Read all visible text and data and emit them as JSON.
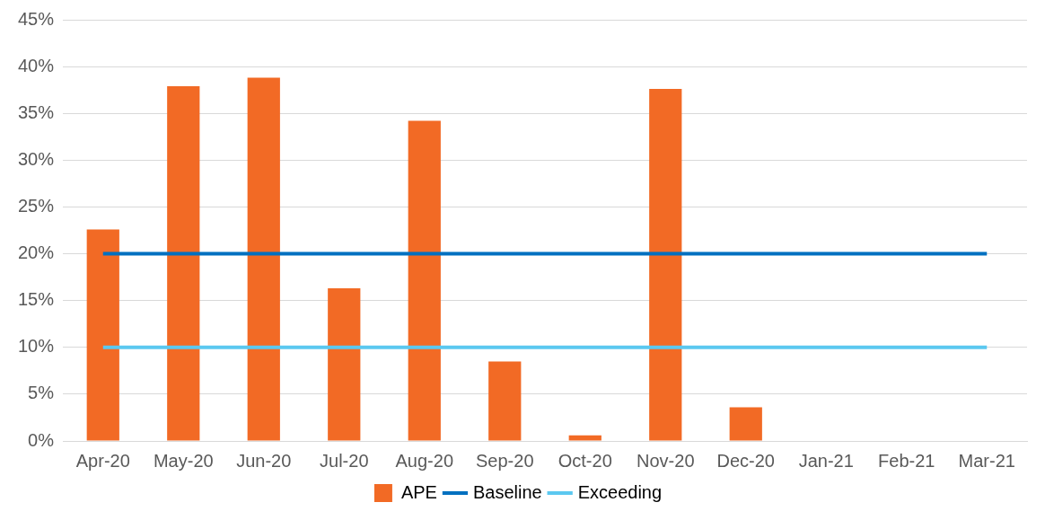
{
  "chart_data": {
    "type": "bar",
    "categories": [
      "Apr-20",
      "May-20",
      "Jun-20",
      "Jul-20",
      "Aug-20",
      "Sep-20",
      "Oct-20",
      "Nov-20",
      "Dec-20",
      "Jan-21",
      "Feb-21",
      "Mar-21"
    ],
    "series": [
      {
        "name": "APE",
        "color": "#f26a25",
        "values": [
          22.6,
          37.9,
          38.8,
          16.3,
          34.2,
          8.5,
          0.6,
          37.6,
          3.6,
          null,
          null,
          null
        ]
      },
      {
        "name": "Baseline",
        "type": "line",
        "color": "#0070c0",
        "values": [
          20,
          20,
          20,
          20,
          20,
          20,
          20,
          20,
          20,
          20,
          20,
          20
        ]
      },
      {
        "name": "Exceeding",
        "type": "line",
        "color": "#5bc8f0",
        "values": [
          10,
          10,
          10,
          10,
          10,
          10,
          10,
          10,
          10,
          10,
          10,
          10
        ]
      }
    ],
    "ylim": [
      0,
      45
    ],
    "yticks": [
      {
        "value": 0,
        "label": "0%"
      },
      {
        "value": 5,
        "label": "5%"
      },
      {
        "value": 10,
        "label": "10%"
      },
      {
        "value": 15,
        "label": "15%"
      },
      {
        "value": 20,
        "label": "20%"
      },
      {
        "value": 25,
        "label": "25%"
      },
      {
        "value": 30,
        "label": "30%"
      },
      {
        "value": 35,
        "label": "35%"
      },
      {
        "value": 40,
        "label": "40%"
      },
      {
        "value": 45,
        "label": "45%"
      }
    ],
    "grid": "y",
    "legend": "bottom",
    "marker": "none"
  }
}
